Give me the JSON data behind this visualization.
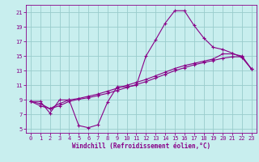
{
  "xlabel": "Windchill (Refroidissement éolien,°C)",
  "bg_color": "#c8eeee",
  "line_color": "#880088",
  "grid_color": "#99cccc",
  "xlim": [
    -0.5,
    23.5
  ],
  "ylim": [
    4.5,
    22.0
  ],
  "xticks": [
    0,
    1,
    2,
    3,
    4,
    5,
    6,
    7,
    8,
    9,
    10,
    11,
    12,
    13,
    14,
    15,
    16,
    17,
    18,
    19,
    20,
    21,
    22,
    23
  ],
  "yticks": [
    5,
    7,
    9,
    11,
    13,
    15,
    17,
    19,
    21
  ],
  "series1_x": [
    0,
    1,
    2,
    3,
    4,
    5,
    6,
    7,
    8,
    9,
    10,
    11,
    12,
    13,
    14,
    15,
    16,
    17,
    18,
    19,
    20,
    21,
    22,
    23
  ],
  "series1_y": [
    8.8,
    8.8,
    7.2,
    9.0,
    9.0,
    5.5,
    5.2,
    5.6,
    8.7,
    10.8,
    10.8,
    11.0,
    15.0,
    17.2,
    19.5,
    21.2,
    21.2,
    19.2,
    17.5,
    16.2,
    15.9,
    15.4,
    14.8,
    13.2
  ],
  "series2_x": [
    0,
    1,
    2,
    3,
    4,
    5,
    6,
    7,
    8,
    9,
    10,
    11,
    12,
    13,
    14,
    15,
    16,
    17,
    18,
    19,
    20,
    21,
    22,
    23
  ],
  "series2_y": [
    8.8,
    8.5,
    7.8,
    8.5,
    9.0,
    9.2,
    9.5,
    9.8,
    10.2,
    10.6,
    11.0,
    11.4,
    11.8,
    12.3,
    12.8,
    13.3,
    13.7,
    14.0,
    14.3,
    14.6,
    15.3,
    15.3,
    15.0,
    13.2
  ],
  "series3_x": [
    0,
    1,
    2,
    3,
    4,
    5,
    6,
    7,
    8,
    9,
    10,
    11,
    12,
    13,
    14,
    15,
    16,
    17,
    18,
    19,
    20,
    21,
    22,
    23
  ],
  "series3_y": [
    8.8,
    8.2,
    7.8,
    8.2,
    8.8,
    9.1,
    9.3,
    9.6,
    9.9,
    10.3,
    10.7,
    11.1,
    11.5,
    12.0,
    12.5,
    13.0,
    13.4,
    13.8,
    14.1,
    14.4,
    14.7,
    14.9,
    14.9,
    13.2
  ]
}
